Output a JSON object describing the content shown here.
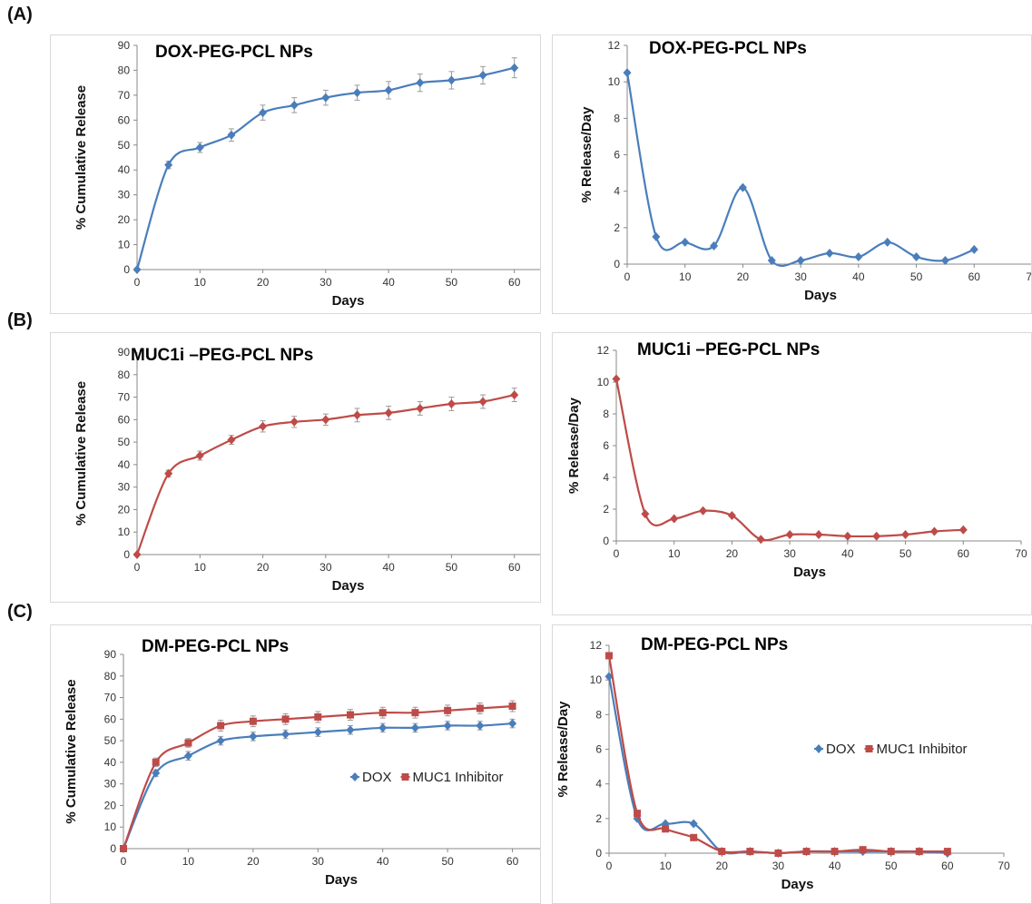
{
  "panels": {
    "a": "(A)",
    "b": "(B)",
    "c": "(C)"
  },
  "colors": {
    "dox": "#4a7ebb",
    "muc1": "#be4b48"
  },
  "chart_data": [
    {
      "id": "a-left",
      "type": "line",
      "title": "DOX-PEG-PCL NPs",
      "xlabel": "Days",
      "ylabel": "% Cumulative Release",
      "xlim": [
        0,
        70
      ],
      "xstep": 10,
      "ylim": [
        0,
        90
      ],
      "ystep": 10,
      "error_bars": true,
      "series": [
        {
          "color_key": "dox",
          "marker": "diamond",
          "x": [
            0,
            5,
            10,
            15,
            20,
            25,
            30,
            35,
            40,
            45,
            50,
            55,
            60
          ],
          "values": [
            0,
            42,
            49,
            54,
            63,
            66,
            69,
            71,
            72,
            75,
            76,
            78,
            81
          ],
          "error": [
            0,
            1.5,
            2,
            2.5,
            3,
            3,
            3,
            3,
            3.5,
            3.5,
            3.5,
            3.5,
            4
          ]
        }
      ]
    },
    {
      "id": "a-right",
      "type": "line",
      "title": "DOX-PEG-PCL  NPs",
      "xlabel": "Days",
      "ylabel": "% Release/Day",
      "xlim": [
        0,
        70
      ],
      "xstep": 10,
      "ylim": [
        0,
        12
      ],
      "ystep": 2,
      "error_bars": false,
      "series": [
        {
          "color_key": "dox",
          "marker": "diamond",
          "x": [
            0,
            5,
            10,
            15,
            20,
            25,
            30,
            35,
            40,
            45,
            50,
            55,
            60
          ],
          "values": [
            10.5,
            1.5,
            1.2,
            1.0,
            4.2,
            0.2,
            0.2,
            0.6,
            0.4,
            1.2,
            0.4,
            0.2,
            0.8
          ]
        }
      ]
    },
    {
      "id": "b-left",
      "type": "line",
      "title": "MUC1i –PEG-PCL  NPs",
      "xlabel": "Days",
      "ylabel": "% Cumulative Release",
      "xlim": [
        0,
        70
      ],
      "xstep": 10,
      "ylim": [
        0,
        90
      ],
      "ystep": 10,
      "error_bars": true,
      "series": [
        {
          "color_key": "muc1",
          "marker": "diamond",
          "x": [
            0,
            5,
            10,
            15,
            20,
            25,
            30,
            35,
            40,
            45,
            50,
            55,
            60
          ],
          "values": [
            0,
            36,
            44,
            51,
            57,
            59,
            60,
            62,
            63,
            65,
            67,
            68,
            71
          ],
          "error": [
            0,
            1.5,
            2,
            2,
            2.5,
            2.5,
            2.5,
            3,
            3,
            3,
            3,
            3,
            3
          ]
        }
      ]
    },
    {
      "id": "b-right",
      "type": "line",
      "title": "MUC1i –PEG-PCL NPs",
      "xlabel": "Days",
      "ylabel": "% Release/Day",
      "xlim": [
        0,
        70
      ],
      "xstep": 10,
      "ylim": [
        0,
        12
      ],
      "ystep": 2,
      "error_bars": false,
      "series": [
        {
          "color_key": "muc1",
          "marker": "diamond",
          "x": [
            0,
            5,
            10,
            15,
            20,
            25,
            30,
            35,
            40,
            45,
            50,
            55,
            60
          ],
          "values": [
            10.2,
            1.7,
            1.4,
            1.9,
            1.6,
            0.1,
            0.4,
            0.4,
            0.3,
            0.3,
            0.4,
            0.6,
            0.7
          ]
        }
      ]
    },
    {
      "id": "c-left",
      "type": "line",
      "title": "DM-PEG-PCL  NPs",
      "xlabel": "Days",
      "ylabel": "% Cumulative Release",
      "xlim": [
        0,
        70
      ],
      "xstep": 10,
      "ylim": [
        0,
        90
      ],
      "ystep": 10,
      "error_bars": true,
      "legend_position": "center-right",
      "series": [
        {
          "name": "DOX",
          "color_key": "dox",
          "marker": "diamond",
          "x": [
            0,
            5,
            10,
            15,
            20,
            25,
            30,
            35,
            40,
            45,
            50,
            55,
            60
          ],
          "values": [
            0,
            35,
            43,
            50,
            52,
            53,
            54,
            55,
            56,
            56,
            57,
            57,
            58
          ],
          "error": [
            0,
            1.5,
            2,
            2,
            2,
            2,
            2,
            2,
            2,
            2,
            2,
            2,
            2
          ]
        },
        {
          "name": "MUC1 Inhibitor",
          "color_key": "muc1",
          "marker": "square",
          "x": [
            0,
            5,
            10,
            15,
            20,
            25,
            30,
            35,
            40,
            45,
            50,
            55,
            60
          ],
          "values": [
            0,
            40,
            49,
            57,
            59,
            60,
            61,
            62,
            63,
            63,
            64,
            65,
            66
          ],
          "error": [
            0,
            2,
            2,
            2.5,
            2.5,
            2.5,
            2.5,
            2.5,
            2.5,
            2.5,
            2.5,
            2.5,
            2.5
          ]
        }
      ]
    },
    {
      "id": "c-right",
      "type": "line",
      "title": "DM-PEG-PCL  NPs",
      "xlabel": "Days",
      "ylabel": "% Release/Day",
      "xlim": [
        0,
        70
      ],
      "xstep": 10,
      "ylim": [
        0,
        12
      ],
      "ystep": 2,
      "error_bars": false,
      "legend_position": "center-right",
      "series": [
        {
          "name": "DOX",
          "color_key": "dox",
          "marker": "diamond",
          "x": [
            0,
            5,
            10,
            15,
            20,
            25,
            30,
            35,
            40,
            45,
            50,
            55,
            60
          ],
          "values": [
            10.2,
            2.0,
            1.7,
            1.7,
            0.1,
            0.1,
            0.0,
            0.1,
            0.1,
            0.1,
            0.1,
            0.1,
            0.0
          ]
        },
        {
          "name": "MUC1 Inhibitor",
          "color_key": "muc1",
          "marker": "square",
          "x": [
            0,
            5,
            10,
            15,
            20,
            25,
            30,
            35,
            40,
            45,
            50,
            55,
            60
          ],
          "values": [
            11.4,
            2.3,
            1.4,
            0.9,
            0.1,
            0.1,
            0.0,
            0.1,
            0.1,
            0.2,
            0.1,
            0.1,
            0.1
          ]
        }
      ]
    }
  ]
}
